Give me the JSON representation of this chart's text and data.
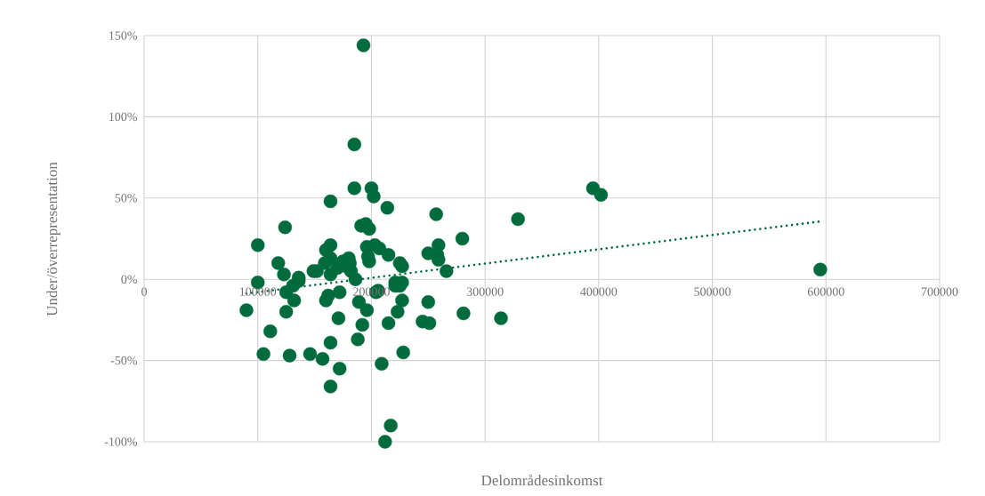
{
  "chart_data": {
    "type": "scatter",
    "xlabel": "Delområdesinkomst",
    "ylabel": "Under/överrepresentation",
    "xlim": [
      0,
      700000
    ],
    "xticks": [
      0,
      100000,
      200000,
      300000,
      400000,
      500000,
      600000,
      700000
    ],
    "ylim": [
      -100,
      150
    ],
    "yticks": [
      {
        "value": -100,
        "label": "-100%"
      },
      {
        "value": -50,
        "label": "-50%"
      },
      {
        "value": 0,
        "label": "0%"
      },
      {
        "value": 50,
        "label": "50%"
      },
      {
        "value": 100,
        "label": "100%"
      },
      {
        "value": 150,
        "label": "150%"
      }
    ],
    "grid": true,
    "legend": false,
    "marker": "circle",
    "series": [
      {
        "color": "#006b3c",
        "x": [
          90000,
          100000,
          100000,
          105000,
          111000,
          118000,
          124000,
          123000,
          125000,
          125000,
          128000,
          131000,
          132000,
          136000,
          136000,
          149000,
          146000,
          152000,
          157000,
          159000,
          160000,
          160000,
          162000,
          164000,
          164000,
          164000,
          164000,
          164000,
          164000,
          170000,
          171000,
          172000,
          172000,
          175000,
          178000,
          181000,
          180000,
          182000,
          185000,
          185000,
          186000,
          188000,
          189000,
          191000,
          192000,
          193000,
          195000,
          196000,
          196000,
          198000,
          197000,
          198000,
          200000,
          202000,
          203000,
          204000,
          206000,
          209000,
          207000,
          212000,
          214000,
          215000,
          215000,
          217000,
          221000,
          221000,
          223000,
          225000,
          225000,
          227000,
          227000,
          228000,
          227000,
          245000,
          250000,
          250000,
          251000,
          257000,
          258000,
          259000,
          259000,
          266000,
          280000,
          281000,
          314000,
          329000,
          395000,
          402000,
          595000
        ],
        "values": [
          -19,
          21,
          -2,
          -46,
          -32,
          10,
          32,
          3,
          -8,
          -20,
          -47,
          -4,
          -13,
          -1,
          1,
          5,
          -46,
          5,
          -49,
          10,
          -13,
          18,
          -10,
          -39,
          -66,
          48,
          21,
          13,
          3,
          7,
          -24,
          -8,
          -55,
          11,
          8,
          10,
          13,
          5,
          56,
          83,
          0,
          -37,
          -14,
          33,
          -28,
          144,
          34,
          20,
          -19,
          31,
          14,
          11,
          56,
          51,
          21,
          -8,
          -7,
          -52,
          19,
          -100,
          44,
          -27,
          15,
          -90,
          -2,
          -4,
          -20,
          -4,
          10,
          8,
          -13,
          -45,
          -2,
          -26,
          16,
          -14,
          -27,
          40,
          15,
          21,
          12,
          5,
          25,
          -21,
          -24,
          37,
          56,
          52,
          6
        ]
      },
      {
        "type": "line",
        "color": "#006b3c",
        "line_style": "dotted",
        "marker": "none",
        "x": [
          90000,
          595000
        ],
        "values": [
          -8.8,
          35.6
        ]
      }
    ]
  }
}
